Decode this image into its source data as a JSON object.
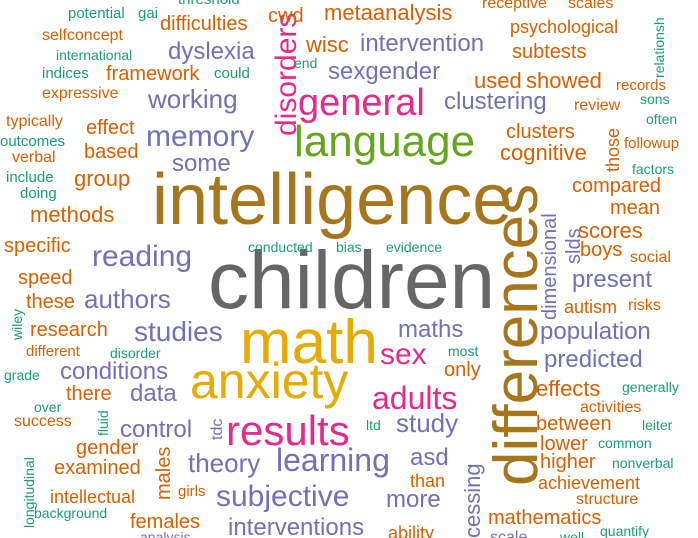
{
  "palette": {
    "teal": "#1b9e77",
    "orange": "#d95f02",
    "purple": "#7570b3",
    "pink": "#e7298a",
    "green": "#66a61e",
    "gold": "#e6ab02",
    "brown": "#a6761d",
    "grey": "#666666"
  },
  "words": {
    "children": "children",
    "intelligence": "intelligence",
    "differences": "differences",
    "math": "math",
    "anxiety": "anxiety",
    "language": "language",
    "results": "results",
    "general": "general",
    "learning": "learning",
    "disorders": "disorders",
    "adults": "adults",
    "sex": "sex",
    "memory": "memory",
    "subjective": "subjective",
    "reading": "reading",
    "studies": "studies",
    "authors": "authors",
    "working": "working",
    "theory": "theory",
    "study": "study",
    "clustering": "clustering",
    "intervention": "intervention",
    "sexgender": "sexgender",
    "dyslexia": "dyslexia",
    "population": "population",
    "predicted": "predicted",
    "interventions": "interventions",
    "maths": "maths",
    "asd": "asd",
    "more": "more",
    "data": "data",
    "control": "control",
    "conditions": "conditions",
    "cognitive": "cognitive",
    "present": "present",
    "dimensional": "dimensional",
    "some": "some",
    "group": "group",
    "metaanalysis": "metaanalysis",
    "wisc": "wisc",
    "methods": "methods",
    "specific": "specific",
    "framework": "framework",
    "effect": "effect",
    "based": "based",
    "used": "used",
    "showed": "showed",
    "clusters": "clusters",
    "effects": "effects",
    "between": "between",
    "higher": "higher",
    "lower": "lower",
    "achievement": "achievement",
    "mathematics": "mathematics",
    "scores": "scores",
    "mean": "mean",
    "compared": "compared",
    "boys": "boys",
    "autism": "autism",
    "slds": "slds",
    "those": "those",
    "research": "research",
    "speed": "speed",
    "these": "these",
    "examined": "examined",
    "gender": "gender",
    "females": "females",
    "males": "males",
    "intellectual": "intellectual",
    "only": "only",
    "there": "there",
    "than": "than",
    "cessing": "cessing",
    "difficulties": "difficulties",
    "cwd": "cwd",
    "psychological": "psychological",
    "subtests": "subtests",
    "receptive": "receptive",
    "scales": "scales",
    "relationsh": "relationsh",
    "records": "records",
    "sons": "sons",
    "often": "often",
    "followup": "followup",
    "factors": "factors",
    "review": "review",
    "social": "social",
    "risks": "risks",
    "activities": "activities",
    "common": "common",
    "nonverbal": "nonverbal",
    "structure": "structure",
    "quantify": "quantify",
    "generally": "generally",
    "leiter": "leiter",
    "potential": "potential",
    "gai": "gai",
    "selfconcept": "selfconcept",
    "international": "international",
    "indices": "indices",
    "could": "could",
    "expressive": "expressive",
    "end": "end",
    "typically": "typically",
    "outcomes": "outcomes",
    "verbal": "verbal",
    "include": "include",
    "doing": "doing",
    "conducted": "conducted",
    "bias": "bias",
    "evidence": "evidence",
    "wiley": "wiley",
    "different": "different",
    "disorder": "disorder",
    "most": "most",
    "grade": "grade",
    "over": "over",
    "fluid": "fluid",
    "success": "success",
    "tdc": "tdc",
    "ltd": "ltd",
    "girls": "girls",
    "longitudinal": "longitudinal",
    "background": "background",
    "ability": "ability",
    "scale": "scale",
    "analysis": "analysis",
    "threshold": "threshold",
    "well": "well"
  }
}
